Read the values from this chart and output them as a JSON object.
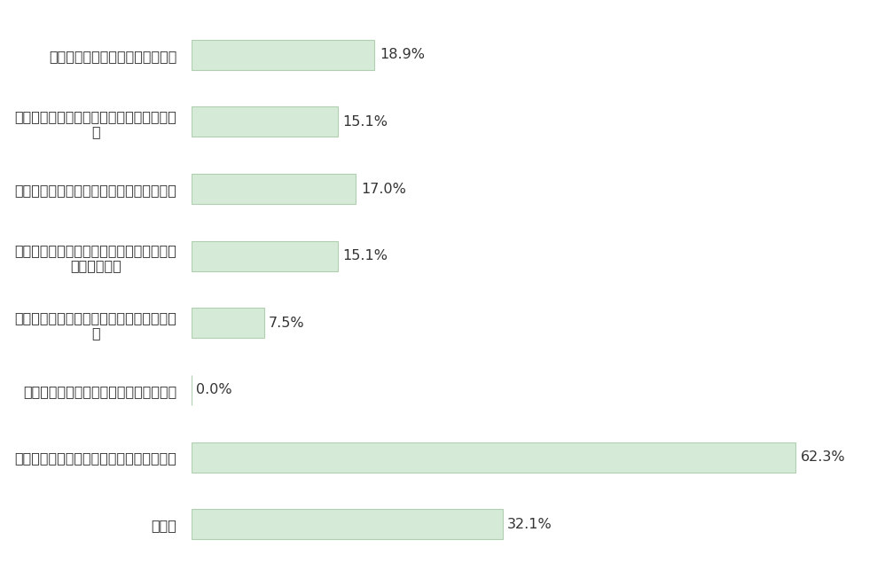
{
  "categories": [
    "土地がなかなか見つからなかった",
    "ハウスメーカーを決めるのに悩んでしまっ\nた",
    "家族の意見をまとめるのがたいへんだった",
    "持ってる土地に合わせると自分の建てたい\n家にならない",
    "自分が欲しい家が何か、はっきりしなかっ\nた",
    "ハウスメーカーの担当者と合わなかった",
    "予算と欲しい機能のバランスが難しかった",
    "その他"
  ],
  "values": [
    18.9,
    15.1,
    17.0,
    15.1,
    7.5,
    0.0,
    62.3,
    32.1
  ],
  "bar_color": "#d6ead8",
  "bar_edge_color": "#b0cfb0",
  "text_color": "#333333",
  "background_color": "#ffffff",
  "grid_color": "#cccccc",
  "xlim": [
    0,
    70
  ],
  "bar_height": 0.45,
  "label_fontsize": 11.5,
  "value_fontsize": 11.5
}
